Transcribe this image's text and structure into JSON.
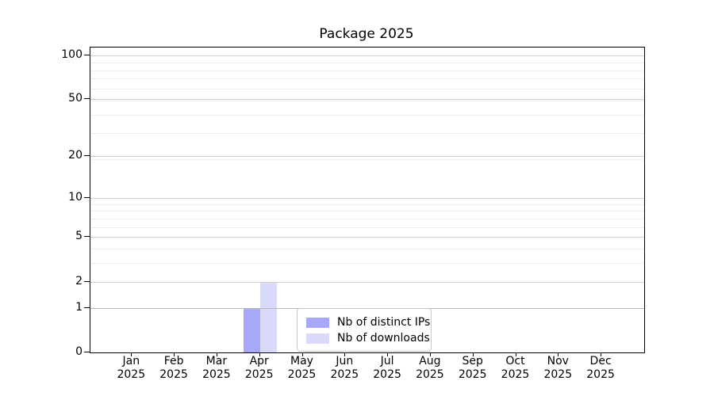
{
  "chart_data": {
    "type": "bar",
    "title": "Package 2025",
    "months": [
      "Jan",
      "Feb",
      "Mar",
      "Apr",
      "May",
      "Jun",
      "Jul",
      "Aug",
      "Sep",
      "Oct",
      "Nov",
      "Dec"
    ],
    "year": "2025",
    "series": [
      {
        "name": "Nb of distinct IPs",
        "color": "#a8a8f8",
        "values": [
          0,
          0,
          0,
          1,
          0,
          0,
          0,
          0,
          0,
          0,
          0,
          0
        ]
      },
      {
        "name": "Nb of downloads",
        "color": "#d9d9fa",
        "values": [
          0,
          0,
          0,
          2,
          0,
          0,
          0,
          0,
          0,
          0,
          0,
          0
        ]
      }
    ],
    "y_ticks": [
      0,
      1,
      2,
      5,
      10,
      20,
      50,
      100
    ],
    "y_minor_gridlines": [
      3,
      4,
      6,
      7,
      8,
      9,
      19,
      29,
      39,
      49,
      59,
      69,
      79,
      89
    ],
    "y_scale": "log10(1+value), includes 0",
    "ylim": [
      0,
      113
    ],
    "grid": "horizontal major and minor",
    "legend_position": "lower center"
  },
  "colors": {
    "background": "#ffffff",
    "axis": "#000000",
    "text": "#000000",
    "grid_major": "#cecece",
    "grid_emphasis": "#b8b8b8",
    "grid_minor": "#ededed",
    "legend_border": "#c8c8c8"
  }
}
